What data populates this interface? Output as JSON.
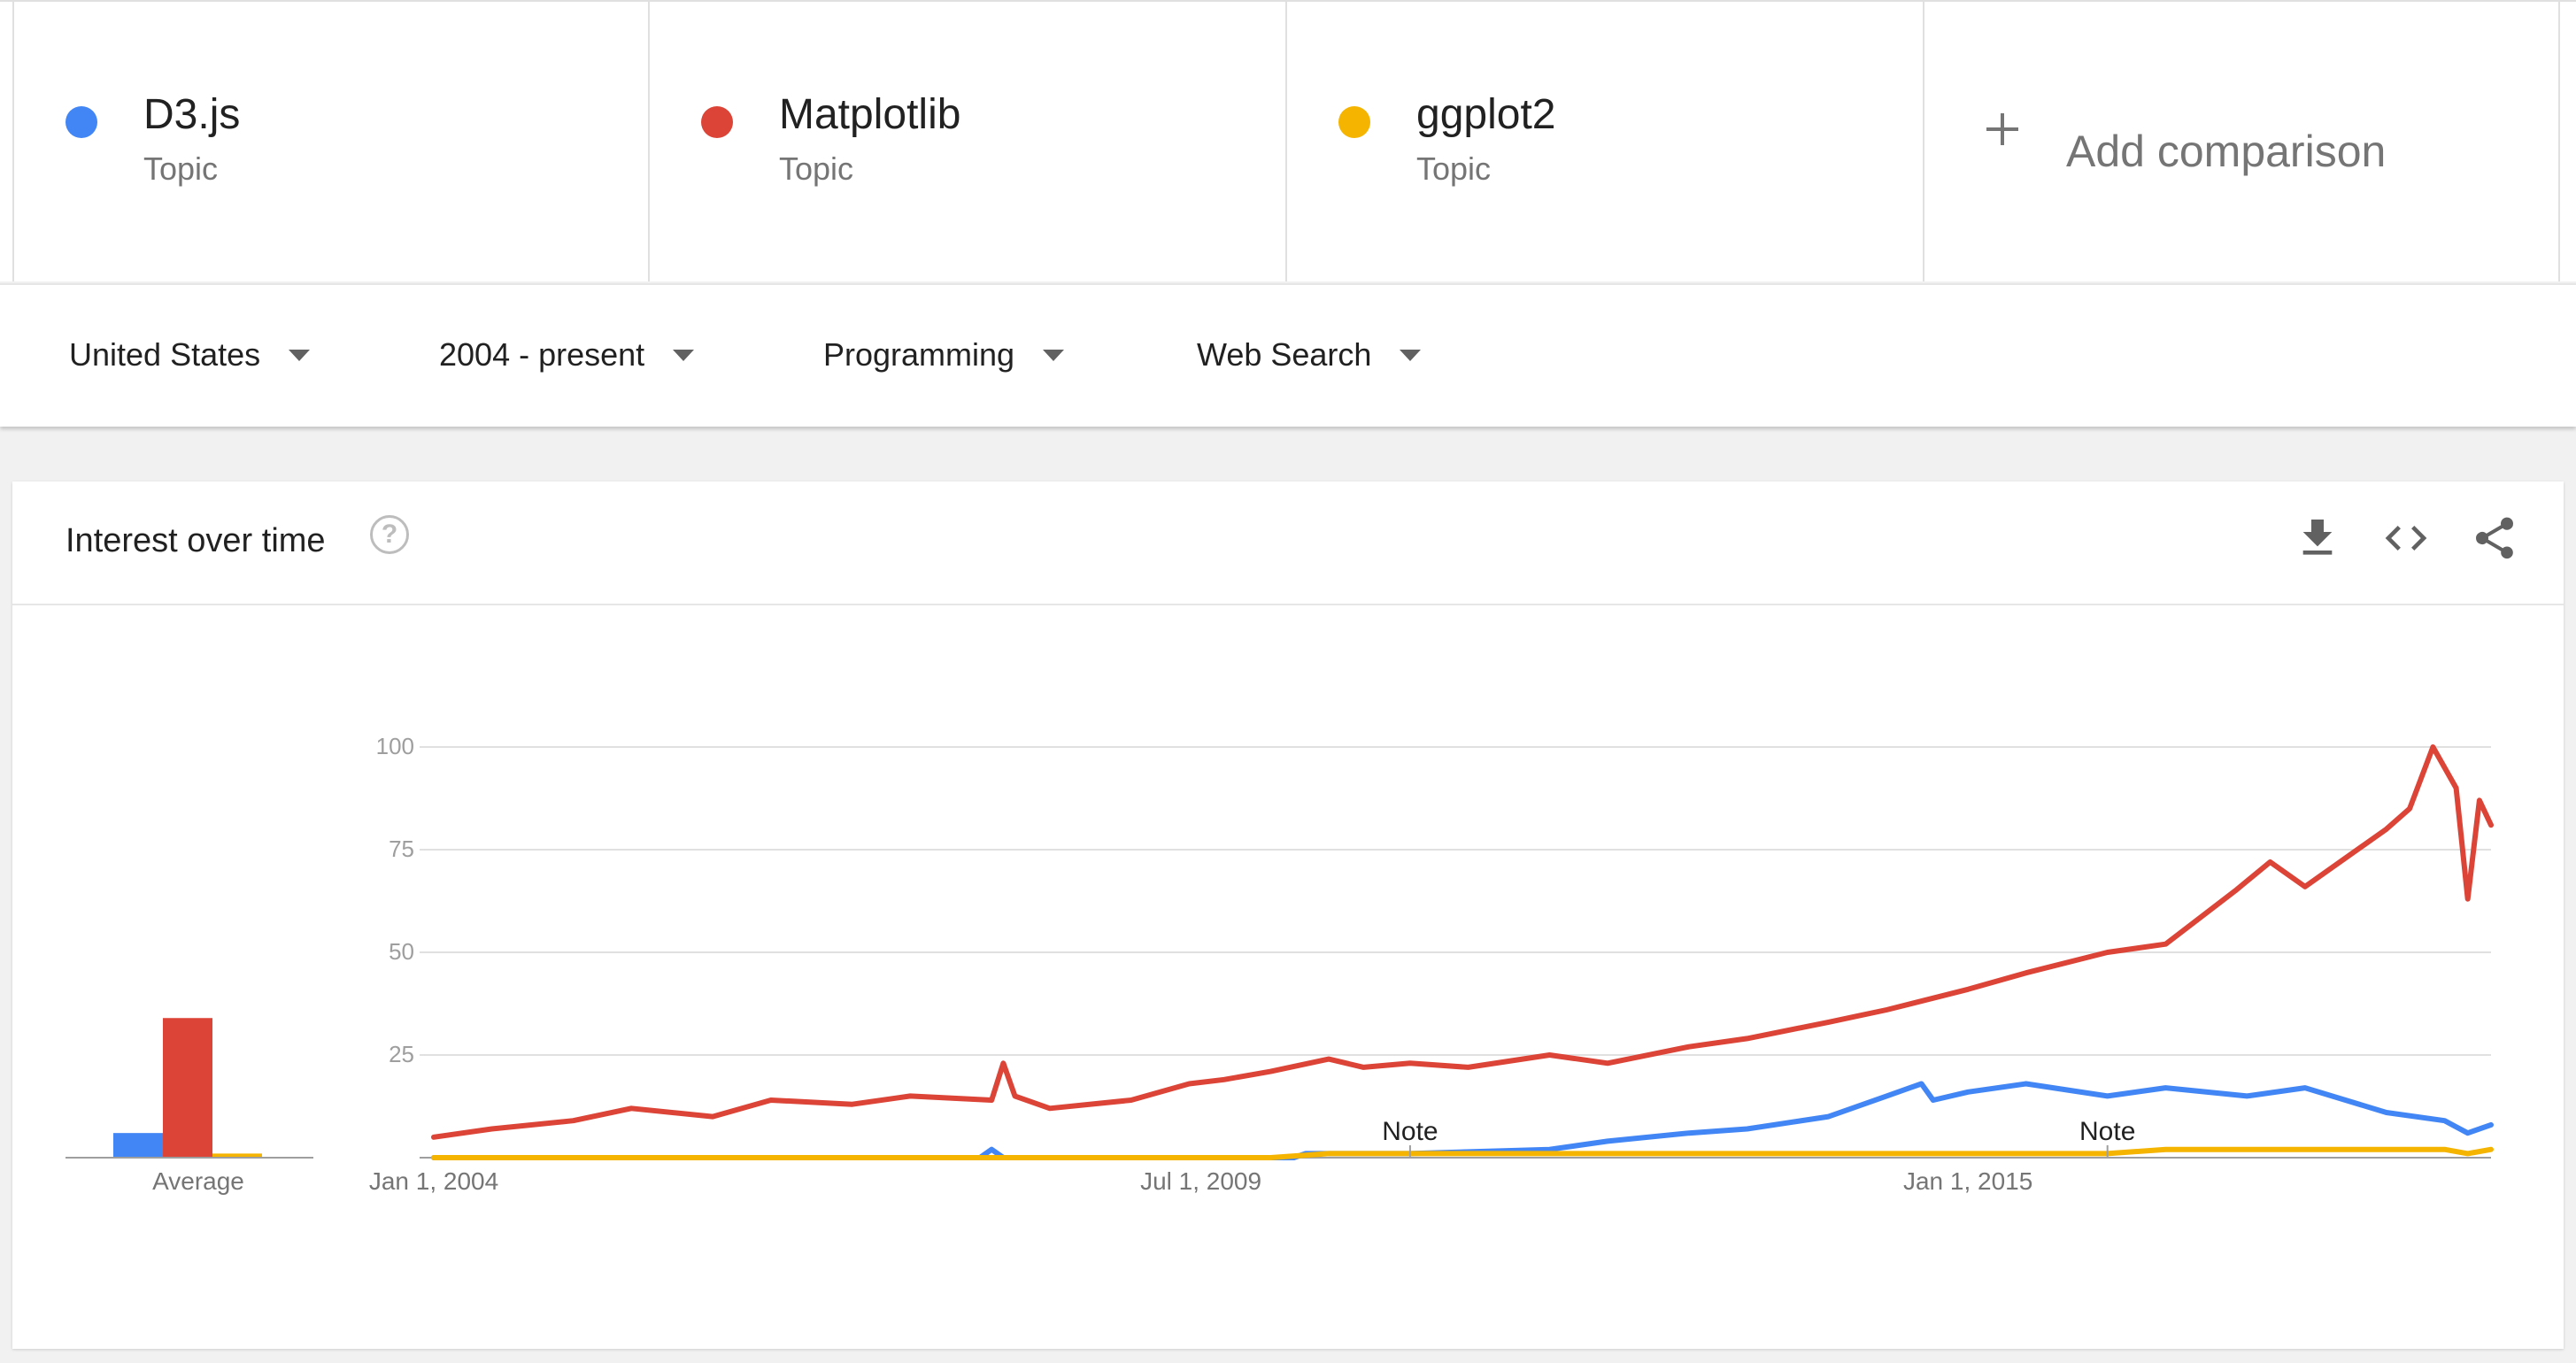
{
  "terms": [
    {
      "name": "D3.js",
      "type": "Topic",
      "color": "#4285f4"
    },
    {
      "name": "Matplotlib",
      "type": "Topic",
      "color": "#db4437"
    },
    {
      "name": "ggplot2",
      "type": "Topic",
      "color": "#f4b400"
    }
  ],
  "add_comparison": {
    "label": "Add comparison"
  },
  "filters": [
    {
      "value": "United States"
    },
    {
      "value": "2004 - present"
    },
    {
      "value": "Programming"
    },
    {
      "value": "Web Search"
    }
  ],
  "card": {
    "title": "Interest over time",
    "help_icon": "question-circle-icon",
    "actions": [
      "download-icon",
      "embed-code-icon",
      "share-icon"
    ]
  },
  "chart_data": {
    "type": "line",
    "title": "",
    "xlabel": "",
    "ylabel": "",
    "ylim": [
      0,
      100
    ],
    "yticks": [
      25,
      50,
      75,
      100
    ],
    "x_range": [
      "2004-01",
      "2018-10"
    ],
    "x_ticks": [
      {
        "date": "2004-01",
        "label": "Jan 1, 2004"
      },
      {
        "date": "2009-07",
        "label": "Jul 1, 2009"
      },
      {
        "date": "2015-01",
        "label": "Jan 1, 2015"
      }
    ],
    "grid": true,
    "legend": "top (term cards)",
    "notes": [
      {
        "date": "2011-01",
        "label": "Note"
      },
      {
        "date": "2016-01",
        "label": "Note"
      }
    ],
    "averages": {
      "label": "Average",
      "values": [
        {
          "name": "D3.js",
          "value": 6
        },
        {
          "name": "Matplotlib",
          "value": 34
        },
        {
          "name": "ggplot2",
          "value": 1
        }
      ]
    },
    "series": [
      {
        "name": "D3.js",
        "color": "#4285f4",
        "points": [
          [
            "2004-01",
            0
          ],
          [
            "2007-12",
            0
          ],
          [
            "2008-01",
            2
          ],
          [
            "2008-02",
            0
          ],
          [
            "2010-03",
            0
          ],
          [
            "2010-04",
            1
          ],
          [
            "2011-01",
            1
          ],
          [
            "2012-01",
            2
          ],
          [
            "2012-06",
            4
          ],
          [
            "2013-01",
            6
          ],
          [
            "2013-06",
            7
          ],
          [
            "2014-01",
            10
          ],
          [
            "2014-06",
            15
          ],
          [
            "2014-09",
            18
          ],
          [
            "2014-10",
            14
          ],
          [
            "2015-01",
            16
          ],
          [
            "2015-06",
            18
          ],
          [
            "2016-01",
            15
          ],
          [
            "2016-06",
            17
          ],
          [
            "2017-01",
            15
          ],
          [
            "2017-06",
            17
          ],
          [
            "2018-01",
            11
          ],
          [
            "2018-06",
            9
          ],
          [
            "2018-08",
            6
          ],
          [
            "2018-10",
            8
          ]
        ]
      },
      {
        "name": "Matplotlib",
        "color": "#db4437",
        "points": [
          [
            "2004-01",
            5
          ],
          [
            "2004-06",
            7
          ],
          [
            "2005-01",
            9
          ],
          [
            "2005-06",
            12
          ],
          [
            "2006-01",
            10
          ],
          [
            "2006-06",
            14
          ],
          [
            "2007-01",
            13
          ],
          [
            "2007-06",
            15
          ],
          [
            "2008-01",
            14
          ],
          [
            "2008-02",
            23
          ],
          [
            "2008-03",
            15
          ],
          [
            "2008-06",
            12
          ],
          [
            "2009-01",
            14
          ],
          [
            "2009-06",
            18
          ],
          [
            "2009-09",
            19
          ],
          [
            "2010-01",
            21
          ],
          [
            "2010-06",
            24
          ],
          [
            "2010-09",
            22
          ],
          [
            "2011-01",
            23
          ],
          [
            "2011-06",
            22
          ],
          [
            "2012-01",
            25
          ],
          [
            "2012-06",
            23
          ],
          [
            "2013-01",
            27
          ],
          [
            "2013-06",
            29
          ],
          [
            "2014-01",
            33
          ],
          [
            "2014-06",
            36
          ],
          [
            "2015-01",
            41
          ],
          [
            "2015-06",
            45
          ],
          [
            "2016-01",
            50
          ],
          [
            "2016-06",
            52
          ],
          [
            "2016-12",
            65
          ],
          [
            "2017-03",
            72
          ],
          [
            "2017-06",
            66
          ],
          [
            "2018-01",
            80
          ],
          [
            "2018-03",
            85
          ],
          [
            "2018-05",
            100
          ],
          [
            "2018-07",
            90
          ],
          [
            "2018-08",
            63
          ],
          [
            "2018-09",
            87
          ],
          [
            "2018-10",
            81
          ]
        ]
      },
      {
        "name": "ggplot2",
        "color": "#f4b400",
        "points": [
          [
            "2004-01",
            0
          ],
          [
            "2010-01",
            0
          ],
          [
            "2010-06",
            1
          ],
          [
            "2012-01",
            1
          ],
          [
            "2014-01",
            1
          ],
          [
            "2015-01",
            1
          ],
          [
            "2016-01",
            1
          ],
          [
            "2016-06",
            2
          ],
          [
            "2017-01",
            2
          ],
          [
            "2017-06",
            2
          ],
          [
            "2018-01",
            2
          ],
          [
            "2018-06",
            2
          ],
          [
            "2018-08",
            1
          ],
          [
            "2018-10",
            2
          ]
        ]
      }
    ]
  }
}
